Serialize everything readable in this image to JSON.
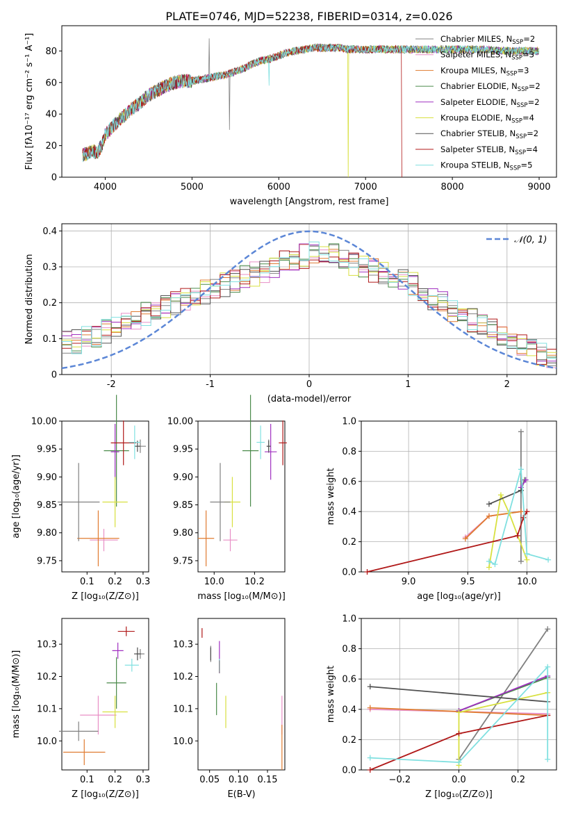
{
  "figure_title": "PLATE=0746, MJD=52238, FIBERID=0314, z=0.026",
  "colors": {
    "models": [
      "#808080",
      "#e88fc6",
      "#e07b30",
      "#4a8a4a",
      "#a030c0",
      "#d8e040",
      "#505050",
      "#b01818",
      "#80e0e0"
    ],
    "gaussian": "#5b86d6",
    "grid": "#b0b0b0"
  },
  "legend_spectrum": [
    {
      "model": "Chabrier MILES",
      "nssp": "=2"
    },
    {
      "model": "Salpeter MILES",
      "nssp": "=3"
    },
    {
      "model": "Kroupa MILES",
      "nssp": "=3"
    },
    {
      "model": "Chabrier ELODIE",
      "nssp": "=2"
    },
    {
      "model": "Salpeter ELODIE",
      "nssp": "=2"
    },
    {
      "model": "Kroupa ELODIE",
      "nssp": "=4"
    },
    {
      "model": "Chabrier STELIB",
      "nssp": "=2"
    },
    {
      "model": "Salpeter STELIB",
      "nssp": "=4"
    },
    {
      "model": "Kroupa STELIB",
      "nssp": "=5"
    }
  ],
  "chart_data": [
    {
      "id": "spectrum",
      "type": "line",
      "xlabel": "wavelength [Angstrom, rest frame]",
      "ylabel": "Flux [fλ10⁻¹⁷ erg cm⁻² s⁻¹ A⁻¹]",
      "xlim": [
        3500,
        9200
      ],
      "ylim": [
        0,
        96
      ],
      "xticks": [
        4000,
        5000,
        6000,
        7000,
        8000,
        9000
      ],
      "yticks": [
        0,
        20,
        40,
        60,
        80
      ],
      "grid": false,
      "legend": "top-right",
      "continuum": [
        [
          3740,
          14
        ],
        [
          3800,
          15
        ],
        [
          3860,
          17
        ],
        [
          3900,
          15
        ],
        [
          3960,
          20
        ],
        [
          4000,
          27
        ],
        [
          4100,
          33
        ],
        [
          4200,
          38
        ],
        [
          4300,
          43
        ],
        [
          4400,
          47
        ],
        [
          4500,
          52
        ],
        [
          4600,
          55
        ],
        [
          4700,
          58
        ],
        [
          4800,
          60
        ],
        [
          4900,
          61
        ],
        [
          5000,
          61
        ],
        [
          5100,
          62
        ],
        [
          5200,
          63
        ],
        [
          5300,
          64
        ],
        [
          5400,
          65
        ],
        [
          5500,
          67
        ],
        [
          5600,
          69
        ],
        [
          5700,
          72
        ],
        [
          5800,
          74
        ],
        [
          5900,
          75
        ],
        [
          6000,
          77
        ],
        [
          6100,
          79
        ],
        [
          6200,
          80
        ],
        [
          6300,
          81
        ],
        [
          6400,
          82
        ],
        [
          6500,
          82
        ],
        [
          6600,
          82
        ],
        [
          6700,
          82
        ],
        [
          6800,
          81
        ],
        [
          6900,
          81
        ],
        [
          7000,
          81
        ],
        [
          7100,
          81
        ],
        [
          7200,
          81
        ],
        [
          7300,
          81
        ],
        [
          7400,
          81
        ],
        [
          7500,
          81
        ],
        [
          7600,
          81
        ],
        [
          7700,
          81
        ],
        [
          7800,
          81
        ],
        [
          7900,
          81
        ],
        [
          8000,
          81
        ],
        [
          8200,
          81
        ],
        [
          8400,
          81
        ],
        [
          8600,
          80
        ],
        [
          8800,
          80
        ],
        [
          9000,
          80
        ]
      ],
      "features": [
        {
          "x": 5200,
          "y": 88,
          "series": "Chabrier MILES"
        },
        {
          "x": 5430,
          "y": 30,
          "series": "Chabrier MILES"
        },
        {
          "x": 5890,
          "y": 58,
          "series": "Kroupa STELIB"
        },
        {
          "x": 6800,
          "y": 0,
          "series": "Kroupa ELODIE"
        },
        {
          "x": 7420,
          "y": 0,
          "series": "Salpeter STELIB"
        }
      ]
    },
    {
      "id": "residuals",
      "type": "line",
      "xlabel": "(data-model)/error",
      "ylabel": "Normed distribution",
      "xlim": [
        -2.5,
        2.5
      ],
      "ylim": [
        0,
        0.42
      ],
      "xticks": [
        -2,
        -1,
        0,
        1,
        2
      ],
      "yticks": [
        0.0,
        0.1,
        0.2,
        0.3,
        0.4
      ],
      "grid": true,
      "legend": "top-right",
      "gaussian_label": "𝒩(0, 1)",
      "hist_envelope": [
        0.09,
        0.09,
        0.1,
        0.11,
        0.12,
        0.13,
        0.14,
        0.16,
        0.17,
        0.18,
        0.19,
        0.2,
        0.21,
        0.22,
        0.23,
        0.24,
        0.25,
        0.26,
        0.27,
        0.28,
        0.29,
        0.3,
        0.31,
        0.32,
        0.33,
        0.34,
        0.34,
        0.33,
        0.32,
        0.31,
        0.3,
        0.29,
        0.28,
        0.27,
        0.26,
        0.25,
        0.23,
        0.21,
        0.2,
        0.18,
        0.17,
        0.15,
        0.14,
        0.12,
        0.1,
        0.09,
        0.08,
        0.07,
        0.06,
        0.05
      ]
    },
    {
      "id": "age_vs_Z",
      "type": "scatter",
      "xlabel": "Z [log₁₀(Z/Z⊙)]",
      "ylabel": "age  [log₁₀(age/yr)]",
      "xlim": [
        0.01,
        0.32
      ],
      "ylim": [
        9.73,
        10.0
      ],
      "xticks": [
        "0.1",
        "0.2",
        "0.3"
      ],
      "yticks": [
        "9.75",
        "9.80",
        "9.85",
        "9.90",
        "9.95",
        "10.00"
      ],
      "points": [
        {
          "x": 0.29,
          "y": 9.955,
          "xerr": 0.02,
          "yerr": 0.012
        },
        {
          "x": 0.16,
          "y": 9.787,
          "xerr": 0.05,
          "yerr": 0.02
        },
        {
          "x": 0.14,
          "y": 9.79,
          "xerr": 0.075,
          "yerr": 0.05
        },
        {
          "x": 0.205,
          "y": 9.947,
          "xerr": 0.045,
          "yerr": 0.1
        },
        {
          "x": 0.2,
          "y": 9.945,
          "xerr": 0.015,
          "yerr": 0.05
        },
        {
          "x": 0.2,
          "y": 9.855,
          "xerr": 0.045,
          "yerr": 0.045
        },
        {
          "x": 0.28,
          "y": 9.955,
          "xerr": 0.01,
          "yerr": 0.01
        },
        {
          "x": 0.23,
          "y": 9.961,
          "xerr": 0.045,
          "yerr": 0.04
        },
        {
          "x": 0.27,
          "y": 9.962,
          "xerr": 0.02,
          "yerr": 0.03
        },
        {
          "x": 0.07,
          "y": 9.855,
          "xerr": 0.075,
          "yerr": 0.07
        }
      ]
    },
    {
      "id": "age_vs_mass",
      "type": "scatter",
      "xlabel": "mass [log₁₀(M/M⊙)]",
      "ylabel": "",
      "xlim": [
        9.92,
        10.35
      ],
      "ylim": [
        9.73,
        10.0
      ],
      "xticks": [
        "10.0",
        "10.2"
      ],
      "yticks": [
        "9.75",
        "9.80",
        "9.85",
        "9.90",
        "9.95",
        "10.00"
      ],
      "points": [
        {
          "x": 10.27,
          "y": 9.955,
          "xerr": 0.01,
          "yerr": 0.012
        },
        {
          "x": 10.08,
          "y": 9.787,
          "xerr": 0.035,
          "yerr": 0.02
        },
        {
          "x": 9.96,
          "y": 9.79,
          "xerr": 0.04,
          "yerr": 0.05
        },
        {
          "x": 10.18,
          "y": 9.947,
          "xerr": 0.04,
          "yerr": 0.1
        },
        {
          "x": 10.28,
          "y": 9.945,
          "xerr": 0.03,
          "yerr": 0.05
        },
        {
          "x": 10.09,
          "y": 9.855,
          "xerr": 0.04,
          "yerr": 0.045
        },
        {
          "x": 10.27,
          "y": 9.955,
          "xerr": 0.01,
          "yerr": 0.01
        },
        {
          "x": 10.34,
          "y": 9.961,
          "xerr": 0.02,
          "yerr": 0.04
        },
        {
          "x": 10.23,
          "y": 9.962,
          "xerr": 0.02,
          "yerr": 0.03
        },
        {
          "x": 10.03,
          "y": 9.855,
          "xerr": 0.05,
          "yerr": 0.07
        }
      ]
    },
    {
      "id": "mass_weight_vs_age",
      "type": "line",
      "xlabel": "age  [log₁₀(age/yr)]",
      "ylabel": "mass weight",
      "xlim": [
        8.6,
        10.25
      ],
      "ylim": [
        0,
        1.0
      ],
      "xticks": [
        "9.0",
        "9.5",
        "10.0"
      ],
      "yticks": [
        "0.0",
        "0.2",
        "0.4",
        "0.6",
        "0.8",
        "1.0"
      ],
      "grid": true,
      "series": [
        {
          "points": [
            [
              9.95,
              0.07
            ],
            [
              9.95,
              0.93
            ]
          ]
        },
        {
          "points": [
            [
              9.48,
              0.23
            ],
            [
              9.68,
              0.37
            ],
            [
              9.95,
              0.4
            ]
          ]
        },
        {
          "points": [
            [
              9.48,
              0.22
            ],
            [
              9.68,
              0.37
            ],
            [
              9.95,
              0.4
            ]
          ]
        },
        {
          "points": [
            [
              9.95,
              0.54
            ],
            [
              9.98,
              0.61
            ]
          ]
        },
        {
          "points": [
            [
              9.95,
              0.56
            ],
            [
              9.99,
              0.61
            ]
          ]
        },
        {
          "points": [
            [
              9.68,
              0.03
            ],
            [
              9.78,
              0.51
            ],
            [
              9.85,
              0.39
            ],
            [
              10.0,
              0.08
            ]
          ]
        },
        {
          "points": [
            [
              9.68,
              0.45
            ],
            [
              9.95,
              0.54
            ]
          ]
        },
        {
          "points": [
            [
              8.65,
              0.0
            ],
            [
              9.92,
              0.24
            ],
            [
              9.97,
              0.36
            ],
            [
              10.0,
              0.4
            ]
          ]
        },
        {
          "points": [
            [
              9.68,
              0.07
            ],
            [
              9.73,
              0.05
            ],
            [
              9.95,
              0.68
            ],
            [
              10.0,
              0.12
            ],
            [
              10.18,
              0.08
            ]
          ]
        }
      ]
    },
    {
      "id": "mass_vs_Z",
      "type": "scatter",
      "xlabel": "Z [log₁₀(Z/Z⊙)]",
      "ylabel": "mass [log₁₀(M/M⊙)]",
      "xlim": [
        0.01,
        0.32
      ],
      "ylim": [
        9.91,
        10.38
      ],
      "xticks": [
        "0.1",
        "0.2",
        "0.3"
      ],
      "yticks": [
        "10.0",
        "10.1",
        "10.2",
        "10.3"
      ],
      "points": [
        {
          "x": 0.29,
          "y": 10.27,
          "xerr": 0.015,
          "yerr": 0.015
        },
        {
          "x": 0.14,
          "y": 10.08,
          "xerr": 0.065,
          "yerr": 0.06
        },
        {
          "x": 0.09,
          "y": 9.965,
          "xerr": 0.075,
          "yerr": 0.04
        },
        {
          "x": 0.205,
          "y": 10.18,
          "xerr": 0.035,
          "yerr": 0.08
        },
        {
          "x": 0.21,
          "y": 10.28,
          "xerr": 0.02,
          "yerr": 0.025
        },
        {
          "x": 0.2,
          "y": 10.09,
          "xerr": 0.045,
          "yerr": 0.05
        },
        {
          "x": 0.28,
          "y": 10.27,
          "xerr": 0.012,
          "yerr": 0.02
        },
        {
          "x": 0.24,
          "y": 10.34,
          "xerr": 0.03,
          "yerr": 0.015
        },
        {
          "x": 0.26,
          "y": 10.235,
          "xerr": 0.025,
          "yerr": 0.02
        },
        {
          "x": 0.07,
          "y": 10.03,
          "xerr": 0.07,
          "yerr": 0.03
        }
      ]
    },
    {
      "id": "mass_vs_EBV",
      "type": "scatter",
      "xlabel": "E(B-V)",
      "ylabel": "",
      "xlim": [
        0.03,
        0.18
      ],
      "ylim": [
        9.91,
        10.38
      ],
      "xticks": [
        "0.05",
        "0.10",
        "0.15"
      ],
      "yticks": [
        "10.0",
        "10.1",
        "10.2",
        "10.3"
      ],
      "points": [
        {
          "x": 0.052,
          "y": 10.27,
          "xerr": 0,
          "yerr": 0.025
        },
        {
          "x": 0.175,
          "y": 10.08,
          "xerr": 0,
          "yerr": 0.06
        },
        {
          "x": 0.175,
          "y": 9.98,
          "xerr": 0,
          "yerr": 0.07
        },
        {
          "x": 0.062,
          "y": 10.13,
          "xerr": 0,
          "yerr": 0.05
        },
        {
          "x": 0.067,
          "y": 10.26,
          "xerr": 0,
          "yerr": 0.05
        },
        {
          "x": 0.078,
          "y": 10.09,
          "xerr": 0,
          "yerr": 0.05
        },
        {
          "x": 0.052,
          "y": 10.27,
          "xerr": 0,
          "yerr": 0.02
        },
        {
          "x": 0.037,
          "y": 10.335,
          "xerr": 0,
          "yerr": 0.015
        },
        {
          "x": 0.067,
          "y": 10.235,
          "xerr": 0,
          "yerr": 0.02
        },
        {
          "x": 0.067,
          "y": 10.23,
          "xerr": 0,
          "yerr": 0.02
        }
      ]
    },
    {
      "id": "mass_weight_vs_Z",
      "type": "line",
      "xlabel": "Z [log₁₀(Z/Z⊙)]",
      "ylabel": "mass weight",
      "xlim": [
        -0.33,
        0.33
      ],
      "ylim": [
        0,
        1.0
      ],
      "xticks": [
        "−0.2",
        "0.0",
        "0.2"
      ],
      "yticks": [
        "0.0",
        "0.2",
        "0.4",
        "0.6",
        "0.8",
        "1.0"
      ],
      "grid": true,
      "series": [
        {
          "points": [
            [
              0.0,
              0.07
            ],
            [
              0.3,
              0.93
            ]
          ]
        },
        {
          "points": [
            [
              -0.3,
              0.4
            ],
            [
              0.3,
              0.37
            ]
          ]
        },
        {
          "points": [
            [
              -0.3,
              0.41
            ],
            [
              0.3,
              0.36
            ]
          ]
        },
        {
          "points": [
            [
              0.0,
              0.39
            ],
            [
              0.3,
              0.61
            ]
          ]
        },
        {
          "points": [
            [
              0.0,
              0.39
            ],
            [
              0.3,
              0.62
            ]
          ]
        },
        {
          "points": [
            [
              0.0,
              0.03
            ],
            [
              0.0,
              0.38
            ],
            [
              0.3,
              0.51
            ]
          ]
        },
        {
          "points": [
            [
              -0.3,
              0.55
            ],
            [
              0.3,
              0.45
            ]
          ]
        },
        {
          "points": [
            [
              -0.3,
              0.0
            ],
            [
              0.0,
              0.24
            ],
            [
              0.3,
              0.36
            ]
          ]
        },
        {
          "points": [
            [
              -0.3,
              0.08
            ],
            [
              0.0,
              0.05
            ],
            [
              0.3,
              0.68
            ],
            [
              0.3,
              0.07
            ]
          ]
        }
      ]
    }
  ]
}
